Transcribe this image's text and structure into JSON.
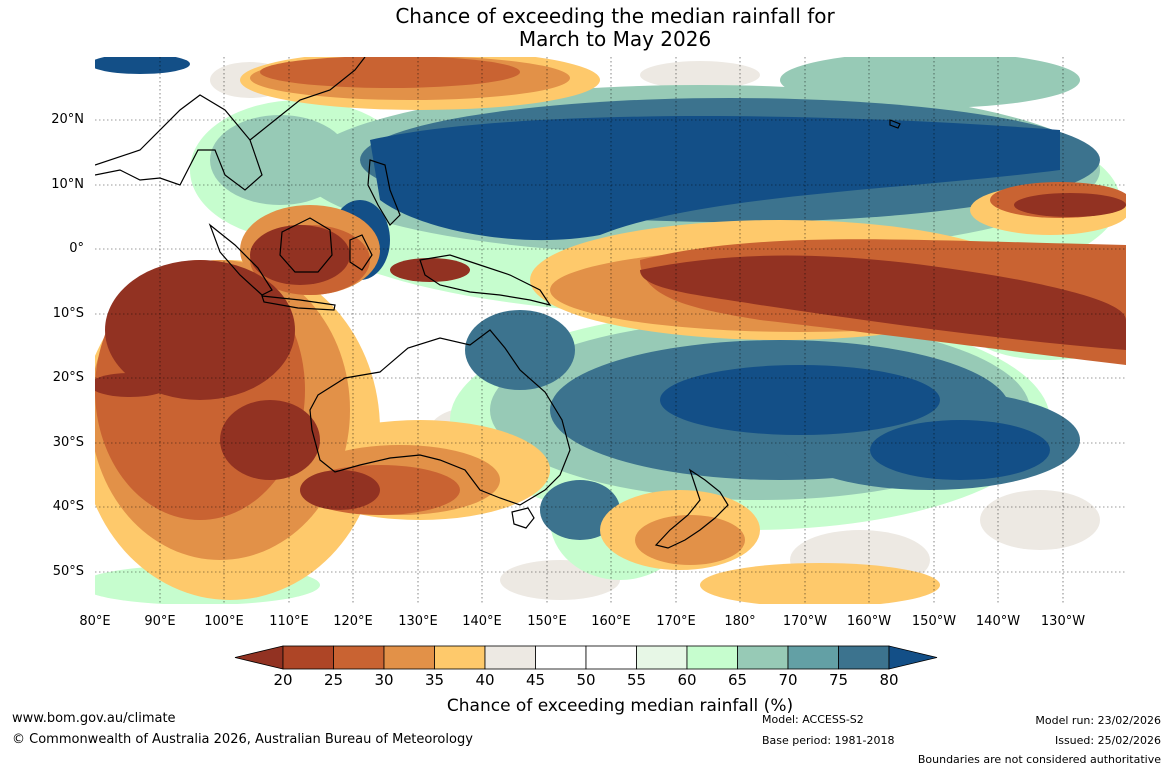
{
  "title": {
    "line1": "Chance of exceeding the median rainfall for",
    "line2": "March to May 2026"
  },
  "map": {
    "lat_labels": [
      "20°N",
      "10°N",
      "0°",
      "10°S",
      "20°S",
      "30°S",
      "40°S",
      "50°S"
    ],
    "lon_labels": [
      "80°E",
      "90°E",
      "100°E",
      "110°E",
      "120°E",
      "130°E",
      "140°E",
      "150°E",
      "160°E",
      "170°E",
      "180°",
      "170°W",
      "160°W",
      "150°W",
      "140°W",
      "130°W"
    ]
  },
  "colorbar": {
    "title": "Chance of exceeding median rainfall (%)",
    "ticks": [
      "20",
      "25",
      "30",
      "35",
      "40",
      "45",
      "50",
      "55",
      "60",
      "65",
      "70",
      "75",
      "80"
    ],
    "colors": [
      "#923222",
      "#ae4526",
      "#c96332",
      "#e29148",
      "#fec96b",
      "#ede9e3",
      "#ffffff",
      "#ffffff",
      "#e7f7e6",
      "#c6fdce",
      "#97cab6",
      "#63a0a5",
      "#3c738e",
      "#134f87"
    ]
  },
  "footer": {
    "url": "www.bom.gov.au/climate",
    "copyright": "© Commonwealth of Australia 2026, Australian Bureau of Meteorology",
    "model": "Model: ACCESS-S2",
    "base_period": "Base period: 1981-2018",
    "model_run": "Model run: 23/02/2026",
    "issued": "Issued: 25/02/2026",
    "disclaimer": "Boundaries are not considered authoritative"
  }
}
